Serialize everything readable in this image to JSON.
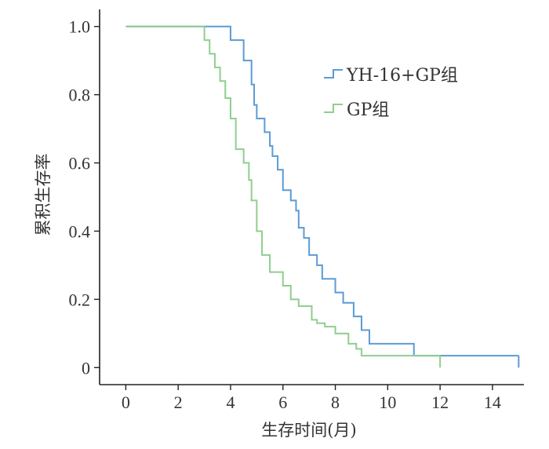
{
  "chart_data": {
    "type": "line",
    "step": true,
    "xlabel": "生存时间(月)",
    "ylabel": "累积生存率",
    "xlim": [
      -1,
      15.2
    ],
    "ylim": [
      -0.05,
      1.05
    ],
    "xticks": [
      0,
      2,
      4,
      6,
      8,
      10,
      12,
      14
    ],
    "xtick_labels": [
      "0",
      "2",
      "4",
      "6",
      "8",
      "10",
      "12",
      "14"
    ],
    "yticks": [
      0,
      0.2,
      0.4,
      0.6,
      0.8,
      1.0
    ],
    "ytick_labels": [
      "0",
      "0.2",
      "0.4",
      "0.6",
      "0.8",
      "1.0"
    ],
    "grid": false,
    "legend_position": "top-right",
    "series": [
      {
        "name": "YH-16+GP组",
        "color": "#5b9bd5",
        "points": [
          [
            0,
            1.0
          ],
          [
            4,
            0.96
          ],
          [
            4.5,
            0.9
          ],
          [
            4.8,
            0.83
          ],
          [
            4.9,
            0.77
          ],
          [
            5.0,
            0.73
          ],
          [
            5.3,
            0.69
          ],
          [
            5.5,
            0.65
          ],
          [
            5.6,
            0.62
          ],
          [
            5.8,
            0.58
          ],
          [
            6.0,
            0.52
          ],
          [
            6.3,
            0.49
          ],
          [
            6.5,
            0.46
          ],
          [
            6.6,
            0.41
          ],
          [
            6.8,
            0.38
          ],
          [
            7.0,
            0.33
          ],
          [
            7.3,
            0.3
          ],
          [
            7.5,
            0.26
          ],
          [
            8.0,
            0.22
          ],
          [
            8.3,
            0.19
          ],
          [
            8.7,
            0.15
          ],
          [
            9.0,
            0.11
          ],
          [
            9.3,
            0.07
          ],
          [
            11.0,
            0.035
          ],
          [
            15.0,
            0.035
          ]
        ],
        "censor_end": [
          15.0,
          0.0
        ]
      },
      {
        "name": "GP组",
        "color": "#8ecf8e",
        "points": [
          [
            0,
            1.0
          ],
          [
            3.0,
            0.96
          ],
          [
            3.2,
            0.92
          ],
          [
            3.4,
            0.88
          ],
          [
            3.6,
            0.84
          ],
          [
            3.8,
            0.79
          ],
          [
            4.0,
            0.73
          ],
          [
            4.2,
            0.64
          ],
          [
            4.5,
            0.6
          ],
          [
            4.7,
            0.55
          ],
          [
            4.8,
            0.49
          ],
          [
            5.0,
            0.4
          ],
          [
            5.2,
            0.33
          ],
          [
            5.5,
            0.28
          ],
          [
            6.0,
            0.24
          ],
          [
            6.3,
            0.2
          ],
          [
            6.6,
            0.18
          ],
          [
            7.1,
            0.14
          ],
          [
            7.3,
            0.13
          ],
          [
            7.6,
            0.12
          ],
          [
            8.0,
            0.1
          ],
          [
            8.5,
            0.07
          ],
          [
            8.8,
            0.055
          ],
          [
            9.0,
            0.035
          ],
          [
            12.0,
            0.035
          ]
        ],
        "censor_end": [
          12.0,
          0.0
        ]
      }
    ]
  }
}
